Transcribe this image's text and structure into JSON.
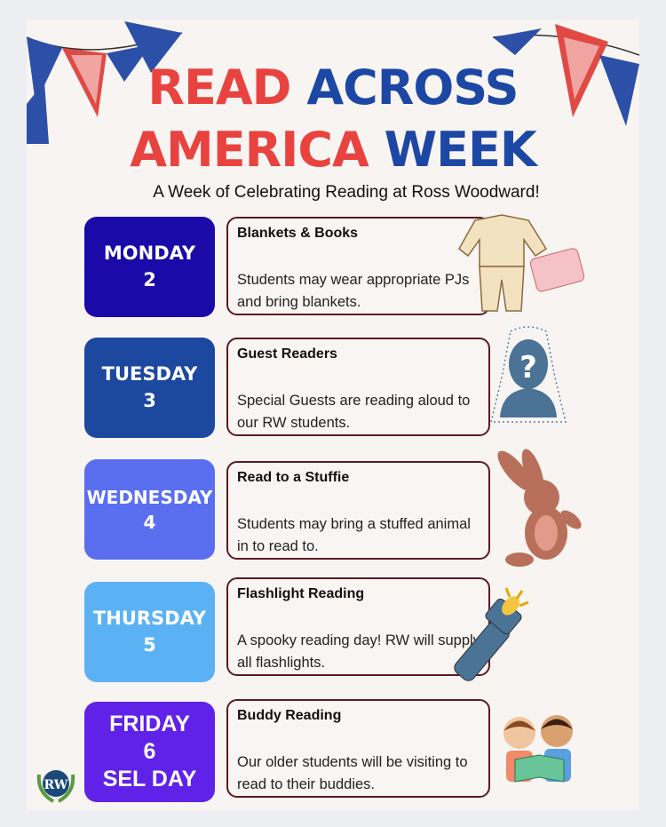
{
  "header": {
    "title_line1_red": "READ",
    "title_line1_blue": "ACROSS",
    "title_line2_red": "AMERICA",
    "title_line2_blue": "WEEK",
    "subtitle": "A Week of Celebrating Reading at Ross Woodward!"
  },
  "colors": {
    "red": "#e8433f",
    "blue": "#1c47a4",
    "card_border": "#5a1a22"
  },
  "days": [
    {
      "day": "MONDAY",
      "date": "2",
      "extra": "",
      "color": "#1a0aa8",
      "title": "Blankets & Books",
      "description": "Students may wear appropriate PJs and bring blankets.",
      "icon": "pajamas-blanket-icon"
    },
    {
      "day": "TUESDAY",
      "date": "3",
      "extra": "",
      "color": "#1c48a0",
      "title": "Guest Readers",
      "description": "Special Guests are reading aloud to our RW students.",
      "icon": "mystery-guest-icon"
    },
    {
      "day": "WEDNESDAY",
      "date": "4",
      "extra": "",
      "color": "#5a6ff0",
      "title": "Read to a Stuffie",
      "description": "Students may bring a stuffed animal in to read to.",
      "icon": "stuffed-bunny-icon"
    },
    {
      "day": "THURSDAY",
      "date": "5",
      "extra": "",
      "color": "#5ab2f5",
      "title": "Flashlight Reading",
      "description": "A spooky reading day! RW will supply all flashlights.",
      "icon": "flashlight-icon"
    },
    {
      "day": "FRIDAY",
      "date": "6",
      "extra": "SEL DAY",
      "color": "#6022e8",
      "title": "Buddy Reading",
      "description": "Our older students will be visiting to read to their buddies.",
      "icon": "kids-reading-icon"
    }
  ],
  "logo": {
    "text": "RW"
  }
}
